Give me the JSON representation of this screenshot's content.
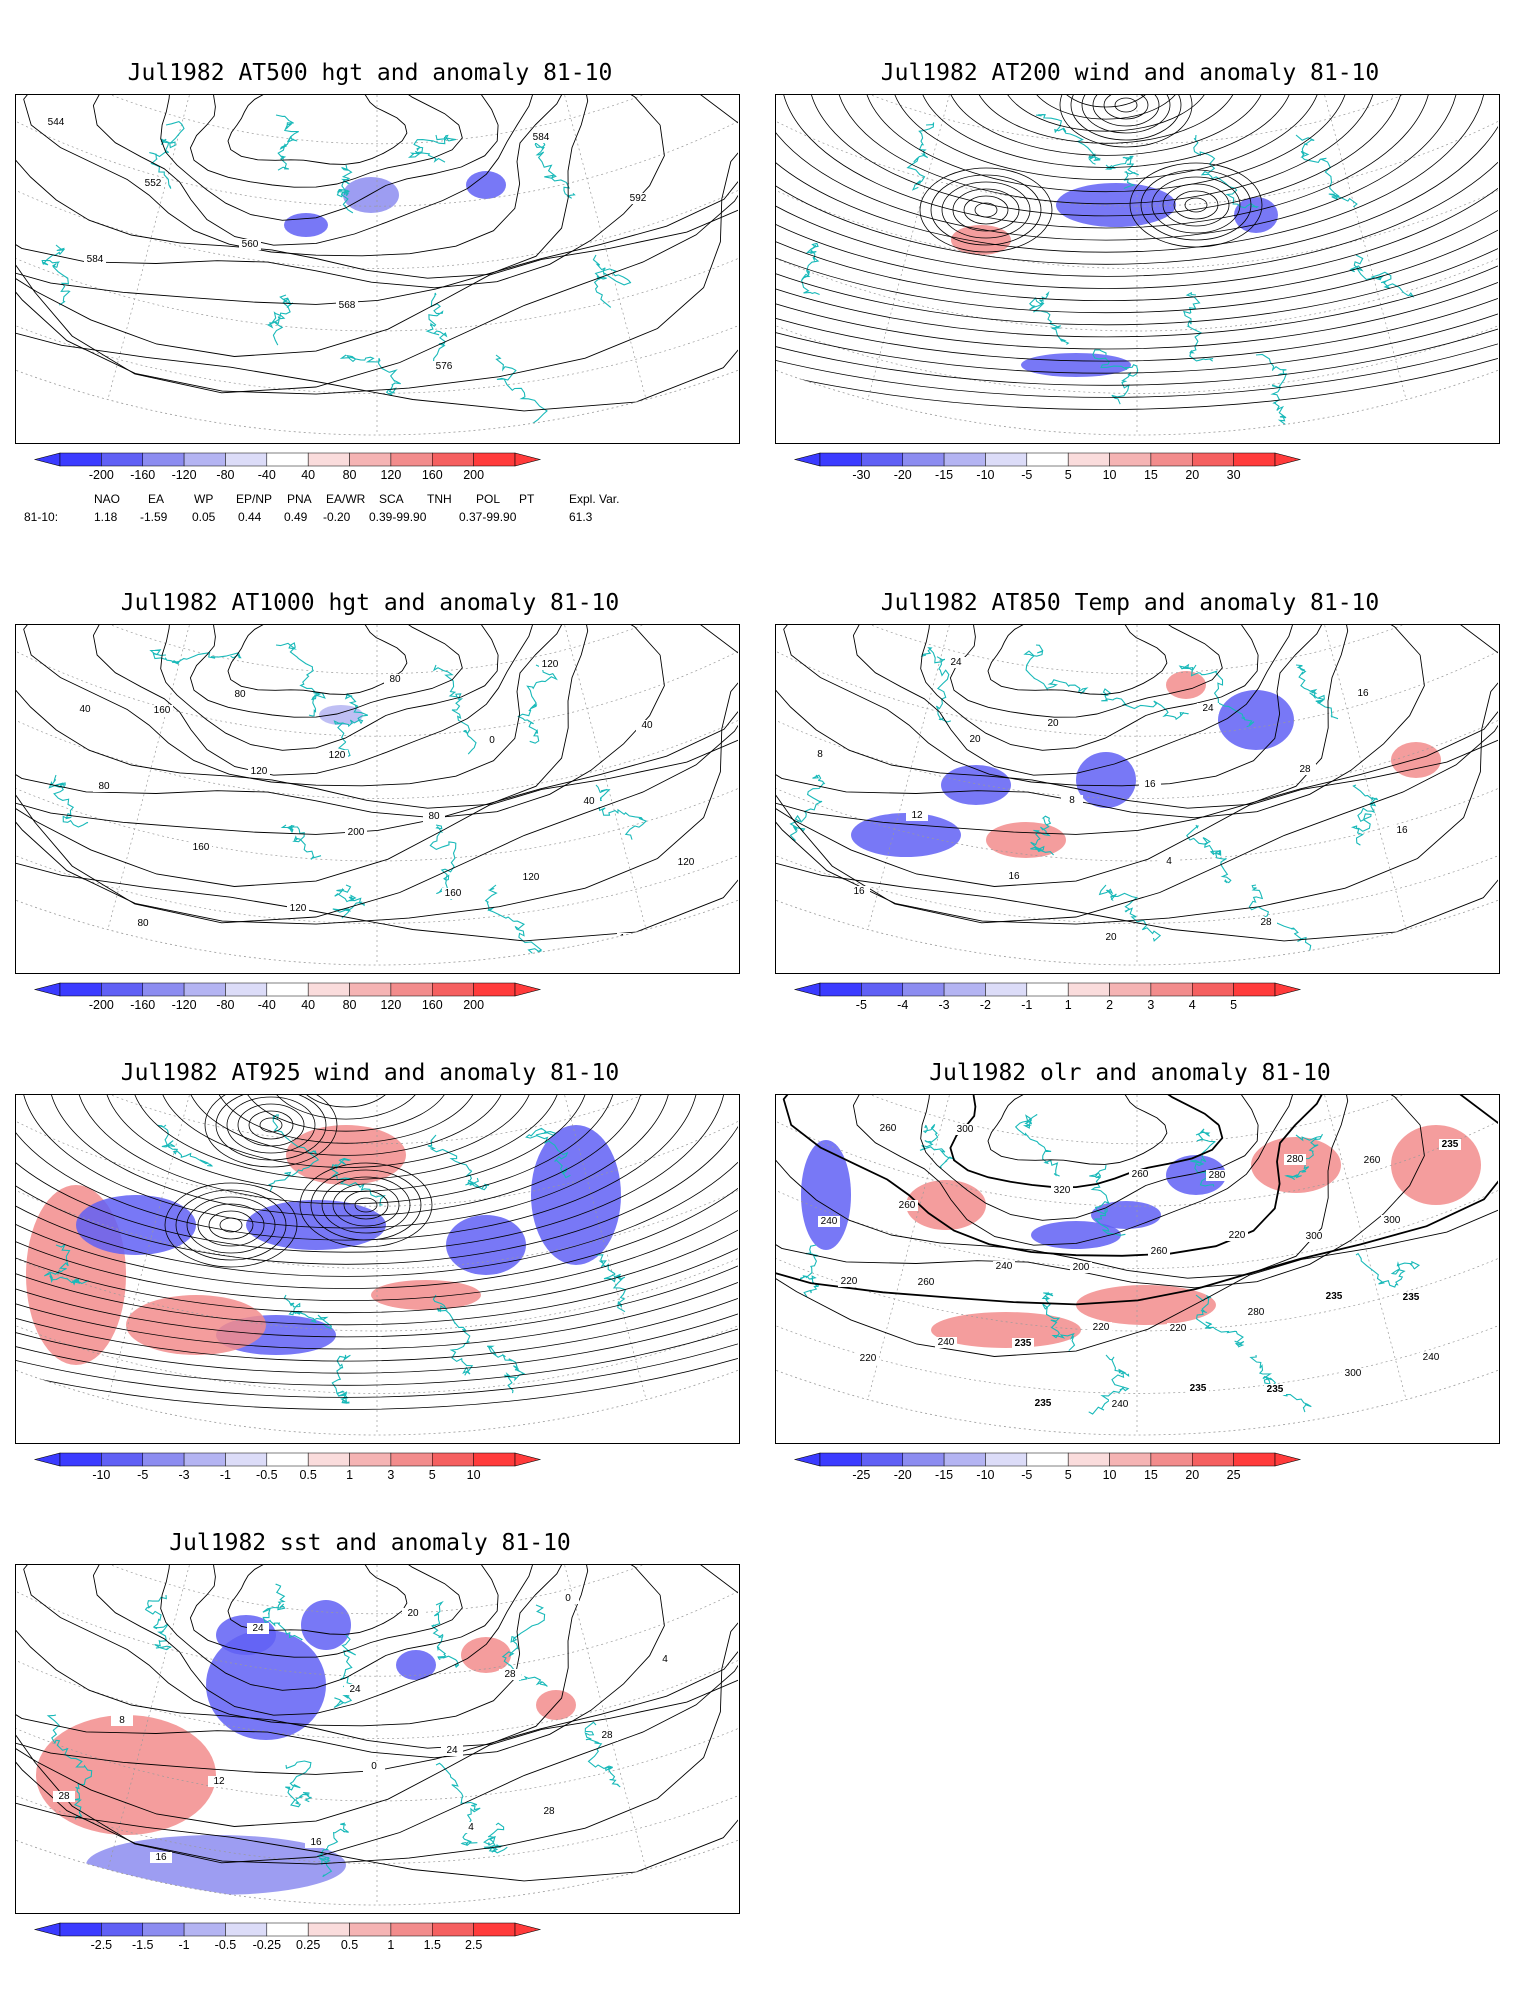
{
  "panels": [
    {
      "id": "p500",
      "title": "Jul1982 AT500 hgt and anomaly 81-10",
      "type": "hgt",
      "colorbar_ticks": [
        "-200",
        "-160",
        "-120",
        "-80",
        "-40",
        "40",
        "80",
        "120",
        "160",
        "200"
      ],
      "contour_labels": [
        "544",
        "552",
        "560",
        "568",
        "576",
        "584",
        "592",
        "584"
      ]
    },
    {
      "id": "p200",
      "title": "Jul1982 AT200 wind and anomaly 81-10",
      "type": "wind",
      "colorbar_ticks": [
        "-30",
        "-20",
        "-15",
        "-10",
        "-5",
        "5",
        "10",
        "15",
        "20",
        "30"
      ],
      "contour_labels": []
    },
    {
      "id": "p1000",
      "title": "Jul1982 AT1000 hgt and anomaly 81-10",
      "type": "hgt",
      "colorbar_ticks": [
        "-200",
        "-160",
        "-120",
        "-80",
        "-40",
        "40",
        "80",
        "120",
        "160",
        "200"
      ],
      "contour_labels": [
        "160",
        "120",
        "200",
        "160",
        "120",
        "40",
        "80",
        "160",
        "120",
        "80",
        "0",
        "40",
        "120",
        "80",
        "80",
        "120",
        "80",
        "120",
        "120",
        "40"
      ]
    },
    {
      "id": "p850",
      "title": "Jul1982 AT850 Temp and anomaly 81-10",
      "type": "temp",
      "colorbar_ticks": [
        "-5",
        "-4",
        "-3",
        "-2",
        "-1",
        "1",
        "2",
        "3",
        "4",
        "5"
      ],
      "contour_labels": [
        "20",
        "8",
        "4",
        "28",
        "16",
        "8",
        "12",
        "16",
        "20",
        "24",
        "28",
        "16",
        "16",
        "24",
        "20",
        "16"
      ]
    },
    {
      "id": "p925",
      "title": "Jul1982 AT925 wind and anomaly 81-10",
      "type": "wind",
      "colorbar_ticks": [
        "-10",
        "-5",
        "-3",
        "-1",
        "-0.5",
        "0.5",
        "1",
        "3",
        "5",
        "10"
      ],
      "contour_labels": []
    },
    {
      "id": "polr",
      "title": "Jul1982 olr and anomaly 81-10",
      "type": "olr",
      "colorbar_ticks": [
        "-25",
        "-20",
        "-15",
        "-10",
        "-5",
        "5",
        "10",
        "15",
        "20",
        "25"
      ],
      "contour_labels": [
        "200",
        "220",
        "235",
        "260",
        "240",
        "260",
        "235",
        "240",
        "280",
        "300",
        "235",
        "220",
        "300",
        "320",
        "260",
        "280",
        "300",
        "235",
        "260",
        "240",
        "220",
        "235",
        "280",
        "300",
        "220",
        "240",
        "235",
        "260",
        "220",
        "235",
        "240",
        "260"
      ]
    },
    {
      "id": "psst",
      "title": "Jul1982 sst and anomaly 81-10",
      "type": "sst",
      "colorbar_ticks": [
        "-2.5",
        "-1.5",
        "-1",
        "-0.5",
        "-0.25",
        "0.25",
        "0.5",
        "1",
        "1.5",
        "2.5"
      ],
      "contour_labels": [
        "0",
        "4",
        "0",
        "4",
        "8",
        "12",
        "16",
        "20",
        "28",
        "28",
        "28",
        "16",
        "24",
        "24",
        "24",
        "28"
      ]
    }
  ],
  "teleconnections": {
    "headers": [
      "NAO",
      "EA",
      "WP",
      "EP/NP",
      "PNA",
      "EA/WR",
      "SCA",
      "TNH",
      "POL",
      "PT",
      "Expl. Var."
    ],
    "row_label": "81-10:",
    "values": [
      "1.18",
      "-1.59",
      "0.05",
      "0.44",
      "0.49",
      "-0.20",
      "0.39-99.90",
      "",
      "0.37-99.90",
      "",
      "61.3"
    ]
  },
  "colors": {
    "coast": "#19b9b9",
    "contour": "#000000",
    "neg": [
      "#3b3bff",
      "#6060f5",
      "#8c8cf0",
      "#b4b4f2",
      "#dcdcf8"
    ],
    "pos": [
      "#fadcdc",
      "#f5b4b4",
      "#f28c8c",
      "#f56060",
      "#ff3b3b"
    ]
  }
}
